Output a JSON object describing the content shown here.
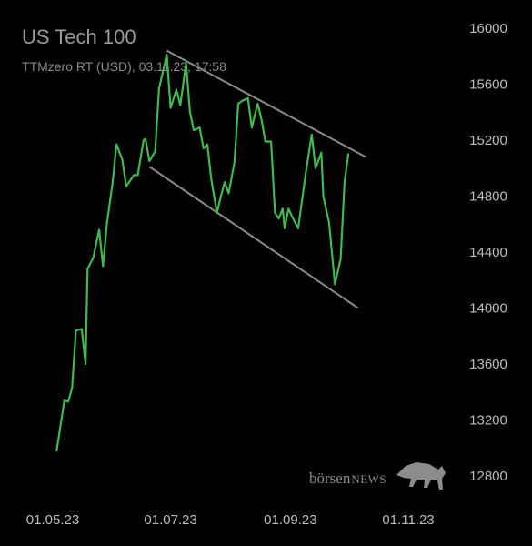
{
  "chart_data": {
    "type": "line",
    "title": "US Tech 100",
    "subtitle": "TTMzero RT (USD), 03.11.23, 17:58",
    "x_ticks": [
      {
        "label": "01.05.23",
        "t": 0
      },
      {
        "label": "01.07.23",
        "t": 61
      },
      {
        "label": "01.09.23",
        "t": 123
      },
      {
        "label": "01.11.23",
        "t": 184
      }
    ],
    "ylim": [
      12700,
      16050
    ],
    "y_ticks": [
      12800,
      13200,
      13600,
      14000,
      14400,
      14800,
      15200,
      15600,
      16000
    ],
    "grid": false,
    "series": [
      {
        "color": "#3fb950",
        "points": [
          [
            2,
            12980
          ],
          [
            6,
            13340
          ],
          [
            8,
            13330
          ],
          [
            10,
            13430
          ],
          [
            12,
            13840
          ],
          [
            15,
            13850
          ],
          [
            17,
            13600
          ],
          [
            18,
            14280
          ],
          [
            21,
            14360
          ],
          [
            24,
            14560
          ],
          [
            26,
            14300
          ],
          [
            28,
            14600
          ],
          [
            31,
            14900
          ],
          [
            33,
            15170
          ],
          [
            36,
            15060
          ],
          [
            38,
            14870
          ],
          [
            42,
            14950
          ],
          [
            44,
            14950
          ],
          [
            47,
            15200
          ],
          [
            48,
            15210
          ],
          [
            50,
            15050
          ],
          [
            53,
            15120
          ],
          [
            55,
            15570
          ],
          [
            59,
            15810
          ],
          [
            61,
            15430
          ],
          [
            64,
            15560
          ],
          [
            66,
            15450
          ],
          [
            69,
            15750
          ],
          [
            71,
            15400
          ],
          [
            73,
            15270
          ],
          [
            76,
            15290
          ],
          [
            78,
            15140
          ],
          [
            80,
            15170
          ],
          [
            82,
            14920
          ],
          [
            85,
            14680
          ],
          [
            87,
            14800
          ],
          [
            89,
            14900
          ],
          [
            91,
            14820
          ],
          [
            94,
            15040
          ],
          [
            96,
            15460
          ],
          [
            98,
            15480
          ],
          [
            101,
            15500
          ],
          [
            103,
            15290
          ],
          [
            106,
            15460
          ],
          [
            108,
            15350
          ],
          [
            110,
            15190
          ],
          [
            113,
            15190
          ],
          [
            115,
            14680
          ],
          [
            117,
            14640
          ],
          [
            119,
            14710
          ],
          [
            120,
            14570
          ],
          [
            122,
            14710
          ],
          [
            124,
            14650
          ],
          [
            127,
            14570
          ],
          [
            131,
            14970
          ],
          [
            134,
            15240
          ],
          [
            136,
            15000
          ],
          [
            139,
            15110
          ],
          [
            140,
            14800
          ],
          [
            143,
            14610
          ],
          [
            146,
            14170
          ],
          [
            149,
            14350
          ],
          [
            151,
            14900
          ],
          [
            153,
            15100
          ]
        ]
      }
    ],
    "channel_lines": [
      {
        "color": "#8a8a8a",
        "from": [
          59,
          15840
        ],
        "to": [
          162,
          15080
        ]
      },
      {
        "color": "#8a8a8a",
        "from": [
          50,
          15010
        ],
        "to": [
          158,
          14000
        ]
      }
    ]
  },
  "watermark": {
    "part1": "börsen",
    "part2": "NEWS"
  }
}
